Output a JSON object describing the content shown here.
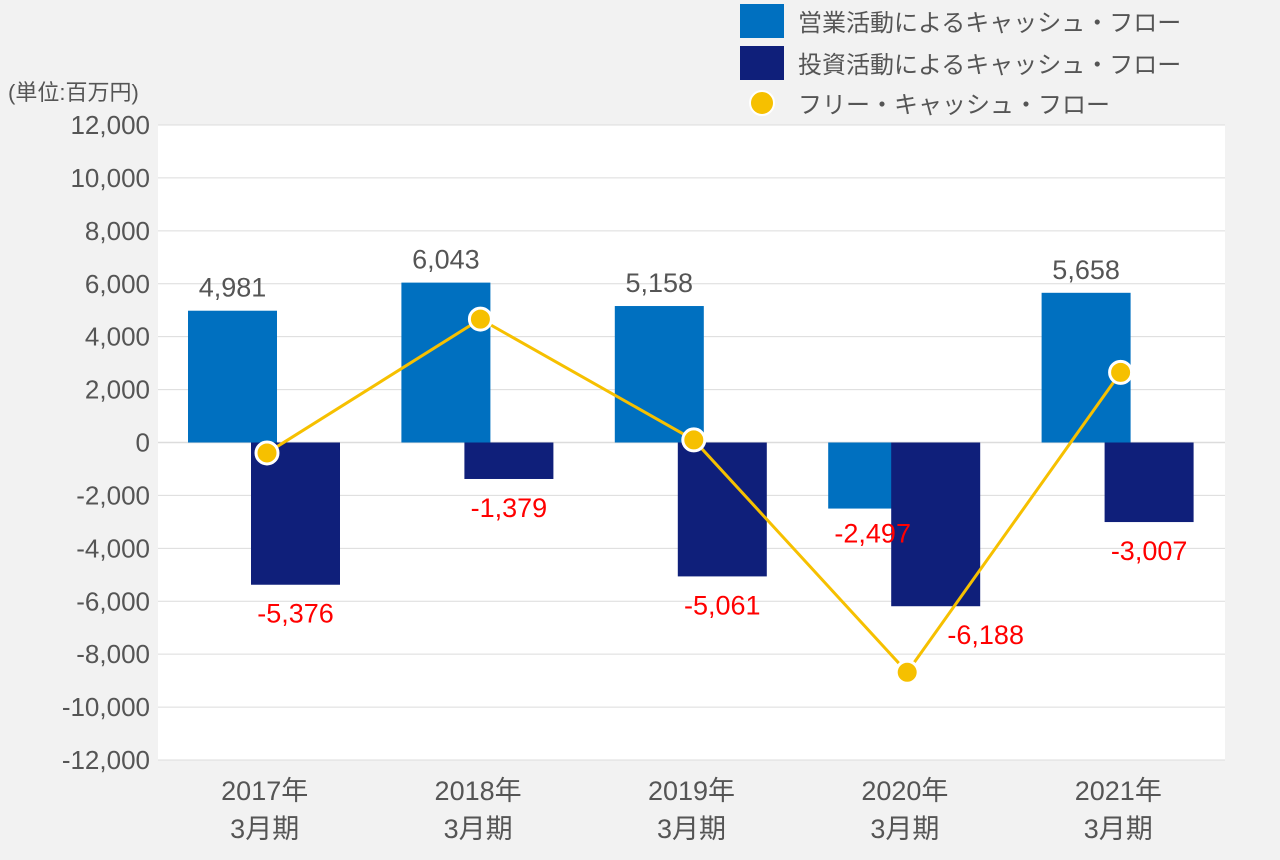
{
  "chart_data": {
    "type": "bar",
    "unit_label": "(単位:百万円)",
    "categories": [
      {
        "line1": "2017年",
        "line2": "3月期"
      },
      {
        "line1": "2018年",
        "line2": "3月期"
      },
      {
        "line1": "2019年",
        "line2": "3月期"
      },
      {
        "line1": "2020年",
        "line2": "3月期"
      },
      {
        "line1": "2021年",
        "line2": "3月期"
      }
    ],
    "ylim": [
      -12000,
      12000
    ],
    "ytick_step": 2000,
    "yticks": [
      "12,000",
      "10,000",
      "8,000",
      "6,000",
      "4,000",
      "2,000",
      "0",
      "-2,000",
      "-4,000",
      "-6,000",
      "-8,000",
      "-10,000",
      "-12,000"
    ],
    "grid": true,
    "legend_position": "top-right",
    "series": [
      {
        "name": "営業活動によるキャッシュ・フロー",
        "kind": "bar",
        "color": "#0070c0",
        "values": [
          4981,
          6043,
          5158,
          -2497,
          5658
        ],
        "labels": [
          "4,981",
          "6,043",
          "5,158",
          "-2,497",
          "5,658"
        ]
      },
      {
        "name": "投資活動によるキャッシュ・フロー",
        "kind": "bar",
        "color": "#0f1f7a",
        "values": [
          -5376,
          -1379,
          -5061,
          -6188,
          -3007
        ],
        "labels": [
          "-5,376",
          "-1,379",
          "-5,061",
          "-6,188",
          "-3,007"
        ]
      },
      {
        "name": "フリー・キャッシュ・フロー",
        "kind": "line",
        "color": "#f6c000",
        "values": [
          -395,
          4664,
          97,
          -8685,
          2651
        ]
      }
    ]
  }
}
